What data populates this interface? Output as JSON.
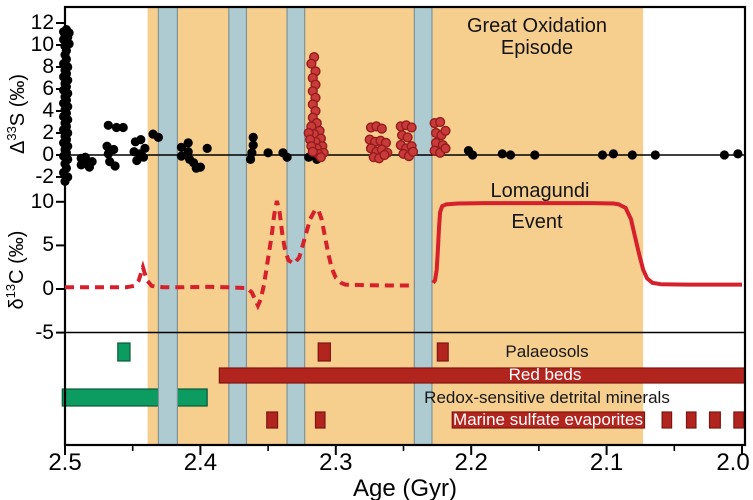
{
  "colors": {
    "band_orange": "#F6CE8E",
    "glacial_fill": "#AECBD2",
    "glacial_stroke": "#7E939A",
    "green": "#0C9B61",
    "green_stroke": "#0A5A39",
    "dark_red": "#B2251F",
    "dark_red_stroke": "#7E1512",
    "curve_red": "#D6202B",
    "scatter_red": "#C93A3A",
    "scatter_red_stroke": "#951C1C",
    "black": "#000000"
  },
  "chart_data": {
    "type": "composite",
    "x_axis": {
      "label": "Age (Gyr)",
      "range": [
        2.5,
        2.0
      ],
      "major_ticks": [
        {
          "v": 2.5,
          "label": "2.5"
        },
        {
          "v": 2.4,
          "label": "2.4"
        },
        {
          "v": 2.3,
          "label": "2.3"
        },
        {
          "v": 2.2,
          "label": "2.2"
        },
        {
          "v": 2.1,
          "label": "2.1"
        },
        {
          "v": 2.0,
          "label": "2.0"
        }
      ],
      "minor_ticks": [
        2.45,
        2.35,
        2.25,
        2.15,
        2.05
      ]
    },
    "goe_band": {
      "label_line1": "Great Oxidation",
      "label_line2": "Episode",
      "from_gyr": 2.439,
      "to_gyr": 2.073
    },
    "glaciations_gyr": [
      {
        "from": 2.431,
        "to": 2.417
      },
      {
        "from": 2.379,
        "to": 2.366
      },
      {
        "from": 2.336,
        "to": 2.323
      },
      {
        "from": 2.242,
        "to": 2.229
      }
    ],
    "d33S_panel": {
      "ylabel_symbol": "Δ",
      "ylabel_sup": "33",
      "ylabel_rest": "S (‰)",
      "ylim": [
        -3.4,
        13.5
      ],
      "ticks": [
        {
          "v": 12,
          "label": "12"
        },
        {
          "v": 10,
          "label": "10"
        },
        {
          "v": 8,
          "label": "8"
        },
        {
          "v": 6,
          "label": "6"
        },
        {
          "v": 4,
          "label": "4"
        },
        {
          "v": 2,
          "label": "2"
        },
        {
          "v": 0,
          "label": "0"
        },
        {
          "v": -2,
          "label": "-2"
        }
      ],
      "black_points": [
        [
          2.499,
          11.4
        ],
        [
          2.501,
          11.2
        ],
        [
          2.497,
          11.1
        ],
        [
          2.5,
          10.9
        ],
        [
          2.498,
          10.7
        ],
        [
          2.501,
          10.5
        ],
        [
          2.499,
          10.3
        ],
        [
          2.497,
          10.1
        ],
        [
          2.5,
          9.9
        ],
        [
          2.499,
          9.5
        ],
        [
          2.5,
          9.1
        ],
        [
          2.499,
          8.7
        ],
        [
          2.501,
          8.3
        ],
        [
          2.498,
          8.0
        ],
        [
          2.5,
          7.7
        ],
        [
          2.499,
          7.4
        ],
        [
          2.501,
          7.1
        ],
        [
          2.498,
          6.8
        ],
        [
          2.5,
          6.5
        ],
        [
          2.499,
          6.2
        ],
        [
          2.501,
          5.9
        ],
        [
          2.498,
          5.6
        ],
        [
          2.5,
          5.3
        ],
        [
          2.499,
          5.0
        ],
        [
          2.501,
          4.7
        ],
        [
          2.498,
          4.4
        ],
        [
          2.5,
          4.1
        ],
        [
          2.499,
          3.8
        ],
        [
          2.501,
          3.5
        ],
        [
          2.498,
          3.2
        ],
        [
          2.5,
          2.9
        ],
        [
          2.499,
          2.6
        ],
        [
          2.501,
          2.3
        ],
        [
          2.498,
          2.0
        ],
        [
          2.5,
          1.7
        ],
        [
          2.499,
          1.4
        ],
        [
          2.501,
          1.1
        ],
        [
          2.498,
          0.8
        ],
        [
          2.5,
          0.5
        ],
        [
          2.499,
          0.2
        ],
        [
          2.501,
          -0.1
        ],
        [
          2.498,
          -0.4
        ],
        [
          2.5,
          -0.8
        ],
        [
          2.499,
          -1.2
        ],
        [
          2.501,
          -1.6
        ],
        [
          2.498,
          -2.0
        ],
        [
          2.5,
          -2.4
        ],
        [
          2.488,
          -0.3
        ],
        [
          2.488,
          -0.9
        ],
        [
          2.485,
          -0.2
        ],
        [
          2.484,
          -0.8
        ],
        [
          2.482,
          -1.1
        ],
        [
          2.48,
          -0.6
        ],
        [
          2.468,
          2.7
        ],
        [
          2.462,
          2.5
        ],
        [
          2.457,
          2.5
        ],
        [
          2.469,
          0.8
        ],
        [
          2.468,
          0.1
        ],
        [
          2.464,
          0.5
        ],
        [
          2.467,
          -0.6
        ],
        [
          2.463,
          -1.0
        ],
        [
          2.448,
          1.2
        ],
        [
          2.444,
          1.4
        ],
        [
          2.449,
          0.3
        ],
        [
          2.445,
          0.1
        ],
        [
          2.441,
          0.6
        ],
        [
          2.442,
          -0.2
        ],
        [
          2.447,
          -0.5
        ],
        [
          2.435,
          1.9
        ],
        [
          2.431,
          1.6
        ],
        [
          2.414,
          0.7
        ],
        [
          2.414,
          -0.1
        ],
        [
          2.409,
          1.1
        ],
        [
          2.409,
          0.3
        ],
        [
          2.408,
          -0.4
        ],
        [
          2.405,
          -0.7
        ],
        [
          2.403,
          -1.2
        ],
        [
          2.4,
          -1.1
        ],
        [
          2.395,
          0.6
        ],
        [
          2.361,
          1.6
        ],
        [
          2.361,
          0.9
        ],
        [
          2.362,
          0.2
        ],
        [
          2.363,
          -0.4
        ],
        [
          2.35,
          0.2
        ],
        [
          2.339,
          0.2
        ],
        [
          2.336,
          -0.2
        ],
        [
          2.32,
          -0.2
        ],
        [
          2.314,
          -0.4
        ],
        [
          2.31,
          0.1
        ],
        [
          2.202,
          0.4
        ],
        [
          2.199,
          0
        ],
        [
          2.177,
          0.1
        ],
        [
          2.171,
          0
        ],
        [
          2.153,
          0
        ],
        [
          2.103,
          0
        ],
        [
          2.095,
          0.1
        ],
        [
          2.081,
          0
        ],
        [
          2.064,
          0
        ],
        [
          2.013,
          0
        ],
        [
          2.003,
          0.1
        ]
      ],
      "red_points": [
        [
          2.316,
          8.9
        ],
        [
          2.318,
          8.3
        ],
        [
          2.315,
          7.6
        ],
        [
          2.317,
          7.0
        ],
        [
          2.315,
          6.4
        ],
        [
          2.317,
          5.8
        ],
        [
          2.315,
          5.2
        ],
        [
          2.317,
          4.6
        ],
        [
          2.315,
          4.0
        ],
        [
          2.317,
          3.4
        ],
        [
          2.314,
          2.9
        ],
        [
          2.318,
          2.6
        ],
        [
          2.312,
          2.2
        ],
        [
          2.316,
          1.9
        ],
        [
          2.32,
          2.0
        ],
        [
          2.311,
          1.5
        ],
        [
          2.315,
          1.2
        ],
        [
          2.319,
          1.4
        ],
        [
          2.31,
          0.8
        ],
        [
          2.314,
          0.6
        ],
        [
          2.318,
          0.8
        ],
        [
          2.309,
          0.2
        ],
        [
          2.313,
          0.1
        ],
        [
          2.317,
          0.3
        ],
        [
          2.311,
          -0.2
        ],
        [
          2.274,
          2.5
        ],
        [
          2.27,
          2.6
        ],
        [
          2.266,
          2.4
        ],
        [
          2.275,
          1.4
        ],
        [
          2.271,
          1.2
        ],
        [
          2.267,
          1.3
        ],
        [
          2.263,
          1.1
        ],
        [
          2.274,
          0.6
        ],
        [
          2.27,
          0.3
        ],
        [
          2.266,
          0.5
        ],
        [
          2.262,
          0.2
        ],
        [
          2.272,
          -0.2
        ],
        [
          2.268,
          -0.3
        ],
        [
          2.264,
          0
        ],
        [
          2.252,
          2.6
        ],
        [
          2.248,
          2.7
        ],
        [
          2.244,
          2.5
        ],
        [
          2.251,
          1.8
        ],
        [
          2.247,
          1.6
        ],
        [
          2.252,
          0.9
        ],
        [
          2.248,
          0.6
        ],
        [
          2.244,
          0.8
        ],
        [
          2.25,
          0.1
        ],
        [
          2.246,
          -0.1
        ],
        [
          2.243,
          0.3
        ],
        [
          2.227,
          2.9
        ],
        [
          2.223,
          3.0
        ],
        [
          2.226,
          2.0
        ],
        [
          2.222,
          1.8
        ],
        [
          2.219,
          2.2
        ],
        [
          2.226,
          1.1
        ],
        [
          2.221,
          0.9
        ],
        [
          2.227,
          0.4
        ],
        [
          2.223,
          0.2
        ],
        [
          2.219,
          0.6
        ]
      ]
    },
    "d13C_panel": {
      "ylabel_symbol": "δ",
      "ylabel_sup": "13",
      "ylabel_rest": "C (‰)",
      "ylim": [
        -6.6,
        11.9
      ],
      "ticks": [
        {
          "v": 10,
          "label": "10"
        },
        {
          "v": 5,
          "label": "5"
        },
        {
          "v": 0,
          "label": "0"
        },
        {
          "v": -5,
          "label": "-5"
        }
      ],
      "lomagundi_label_line1": "Lomagundi",
      "lomagundi_label_line2": "Event",
      "dashed_curve": [
        [
          2.5,
          0.2
        ],
        [
          2.455,
          0.2
        ],
        [
          2.449,
          0.35
        ],
        [
          2.4455,
          1.0
        ],
        [
          2.4425,
          2.5
        ],
        [
          2.4395,
          1.0
        ],
        [
          2.436,
          0.35
        ],
        [
          2.432,
          0.25
        ],
        [
          2.427,
          0.2
        ],
        [
          2.415,
          0.2
        ],
        [
          2.395,
          0.25
        ],
        [
          2.38,
          0.2
        ],
        [
          2.3655,
          0.1
        ],
        [
          2.362,
          -0.4
        ],
        [
          2.359,
          -1.4
        ],
        [
          2.3575,
          -1.9
        ],
        [
          2.3555,
          -1.2
        ],
        [
          2.353,
          0.5
        ],
        [
          2.3505,
          3.0
        ],
        [
          2.3475,
          6.0
        ],
        [
          2.3455,
          8.5
        ],
        [
          2.3435,
          10.1
        ],
        [
          2.3415,
          8.8
        ],
        [
          2.3395,
          6.3
        ],
        [
          2.3375,
          4.5
        ],
        [
          2.335,
          3.3
        ],
        [
          2.331,
          2.9
        ],
        [
          2.327,
          3.6
        ],
        [
          2.323,
          5.8
        ],
        [
          2.319,
          8.0
        ],
        [
          2.3155,
          9.0
        ],
        [
          2.313,
          9.1
        ],
        [
          2.3105,
          8.0
        ],
        [
          2.308,
          6.0
        ],
        [
          2.3055,
          4.0
        ],
        [
          2.303,
          2.4
        ],
        [
          2.3,
          1.3
        ],
        [
          2.296,
          0.7
        ],
        [
          2.293,
          0.5
        ],
        [
          2.28,
          0.45
        ],
        [
          2.26,
          0.4
        ],
        [
          2.243,
          0.4
        ],
        [
          2.2415,
          0.4
        ]
      ],
      "solid_curve": [
        [
          2.2282,
          0.7
        ],
        [
          2.2267,
          1.0
        ],
        [
          2.2255,
          2.2
        ],
        [
          2.2246,
          4.5
        ],
        [
          2.2238,
          7.0
        ],
        [
          2.223,
          8.8
        ],
        [
          2.2215,
          9.5
        ],
        [
          2.2185,
          9.7
        ],
        [
          2.21,
          9.8
        ],
        [
          2.19,
          9.85
        ],
        [
          2.15,
          9.85
        ],
        [
          2.11,
          9.85
        ],
        [
          2.095,
          9.8
        ],
        [
          2.091,
          9.7
        ],
        [
          2.086,
          9.3
        ],
        [
          2.082,
          8.0
        ],
        [
          2.079,
          6.0
        ],
        [
          2.076,
          4.0
        ],
        [
          2.073,
          2.2
        ],
        [
          2.07,
          1.2
        ],
        [
          2.066,
          0.7
        ],
        [
          2.06,
          0.55
        ],
        [
          2.04,
          0.5
        ],
        [
          2.02,
          0.5
        ],
        [
          2.0,
          0.5
        ]
      ]
    },
    "records": {
      "rows": [
        {
          "label": "Palaeosols",
          "label_style": "dark",
          "segments": [
            {
              "from": 2.461,
              "to": 2.452,
              "color": "green"
            },
            {
              "from": 2.313,
              "to": 2.304,
              "color": "red"
            },
            {
              "from": 2.225,
              "to": 2.217,
              "color": "red"
            }
          ]
        },
        {
          "label": "Red beds",
          "label_style": "light",
          "segments": [
            {
              "from": 2.386,
              "to": 1.998,
              "color": "red"
            }
          ]
        },
        {
          "label": "Redox-sensitive detrital minerals",
          "label_style": "dark",
          "segments": [
            {
              "from": 2.502,
              "to": 2.431,
              "color": "green"
            },
            {
              "from": 2.417,
              "to": 2.395,
              "color": "green"
            }
          ]
        },
        {
          "label": "Marine sulfate evaporites",
          "label_style": "light",
          "segments": [
            {
              "from": 2.351,
              "to": 2.343,
              "color": "red"
            },
            {
              "from": 2.315,
              "to": 2.308,
              "color": "red"
            },
            {
              "from": 2.214,
              "to": 2.072,
              "color": "red"
            },
            {
              "from": 2.059,
              "to": 2.052,
              "color": "red"
            },
            {
              "from": 2.041,
              "to": 2.034,
              "color": "red"
            },
            {
              "from": 2.024,
              "to": 2.016,
              "color": "red"
            },
            {
              "from": 2.006,
              "to": 1.999,
              "color": "red"
            }
          ]
        }
      ]
    }
  }
}
